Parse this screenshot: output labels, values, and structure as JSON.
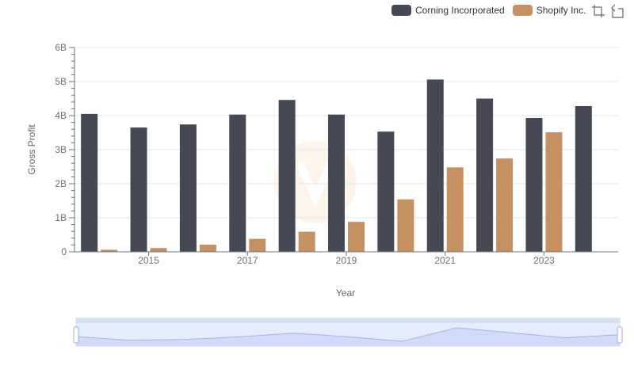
{
  "chart_data": {
    "type": "bar",
    "title": "",
    "xlabel": "Year",
    "ylabel": "Gross Profit",
    "ylim": [
      0,
      6000000000
    ],
    "yticks": [
      "0",
      "1B",
      "2B",
      "3B",
      "4B",
      "5B",
      "6B"
    ],
    "categories": [
      "2014",
      "2015",
      "2016",
      "2017",
      "2018",
      "2019",
      "2020",
      "2021",
      "2022",
      "2023",
      "2024"
    ],
    "x_tick_labels": [
      "2015",
      "2017",
      "2019",
      "2021",
      "2023"
    ],
    "series": [
      {
        "name": "Corning Incorporated",
        "color": "#474856",
        "values": [
          4050000000,
          3650000000,
          3740000000,
          4030000000,
          4460000000,
          4030000000,
          3530000000,
          5060000000,
          4500000000,
          3930000000,
          4280000000
        ]
      },
      {
        "name": "Shopify Inc.",
        "color": "#C69160",
        "values": [
          60000000,
          110000000,
          210000000,
          380000000,
          590000000,
          880000000,
          1540000000,
          2480000000,
          2740000000,
          3510000000,
          null
        ]
      }
    ],
    "legend_position": "top-right",
    "grid": true,
    "datazoom": {
      "range": [
        0,
        100
      ]
    }
  },
  "toolbox": {
    "icons": [
      "zoom-icon",
      "zoom-reset-icon"
    ]
  }
}
